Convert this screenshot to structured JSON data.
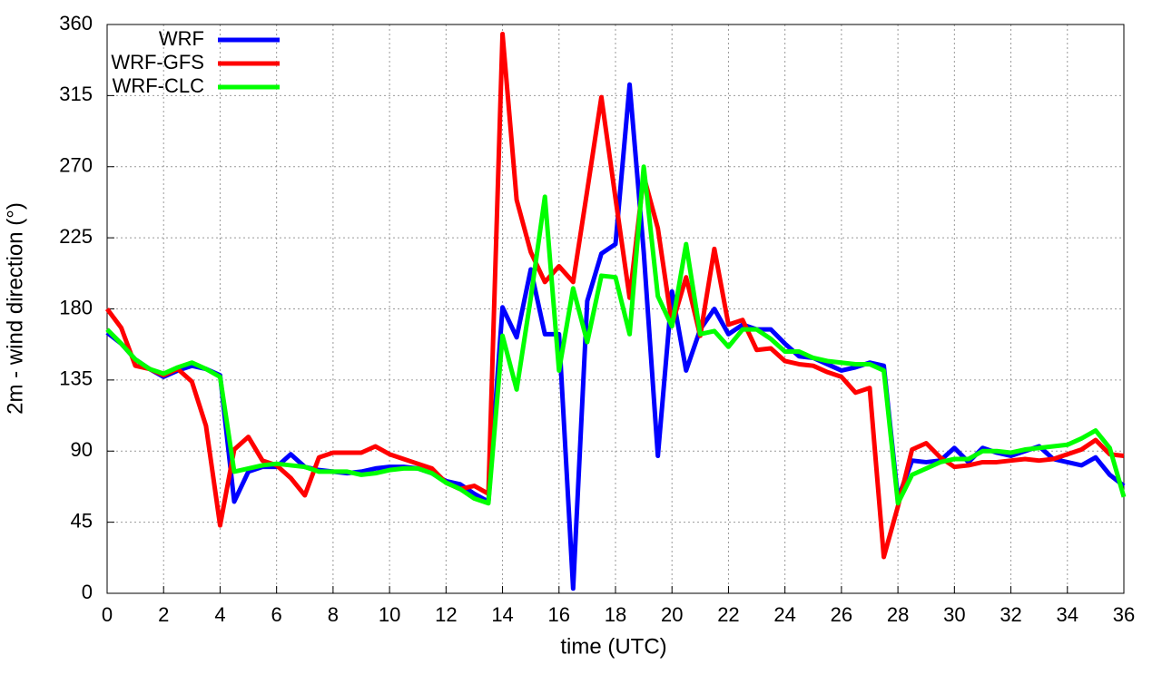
{
  "chart_data": {
    "type": "line",
    "xlabel": "time (UTC)",
    "ylabel": "2m - wind direction (°)",
    "x": [
      0,
      0.5,
      1,
      1.5,
      2,
      2.5,
      3,
      3.5,
      4,
      4.5,
      5,
      5.5,
      6,
      6.5,
      7,
      7.5,
      8,
      8.5,
      9,
      9.5,
      10,
      10.5,
      11,
      11.5,
      12,
      12.5,
      13,
      13.5,
      14,
      14.5,
      15,
      15.5,
      16,
      16.5,
      17,
      17.5,
      18,
      18.5,
      19,
      19.5,
      20,
      20.5,
      21,
      21.5,
      22,
      22.5,
      23,
      23.5,
      24,
      24.5,
      25,
      25.5,
      26,
      26.5,
      27,
      27.5,
      28,
      28.5,
      29,
      29.5,
      30,
      30.5,
      31,
      31.5,
      32,
      32.5,
      33,
      33.5,
      34,
      34.5,
      35,
      35.5,
      36
    ],
    "series": [
      {
        "name": "WRF",
        "color": "#0000ff",
        "values": [
          165,
          158,
          148,
          142,
          137,
          141,
          144,
          142,
          138,
          58,
          77,
          80,
          80,
          88,
          80,
          78,
          77,
          76,
          77,
          79,
          80,
          80,
          79,
          76,
          71,
          69,
          63,
          58,
          181,
          162,
          205,
          164,
          164,
          3,
          185,
          215,
          221,
          322,
          216,
          87,
          191,
          141,
          167,
          180,
          164,
          170,
          167,
          167,
          158,
          150,
          149,
          145,
          141,
          143,
          146,
          144,
          60,
          84,
          83,
          84,
          92,
          83,
          92,
          89,
          87,
          90,
          93,
          85,
          83,
          81,
          86,
          75,
          68
        ]
      },
      {
        "name": "WRF-GFS",
        "color": "#ff0000",
        "values": [
          180,
          168,
          144,
          142,
          138,
          142,
          134,
          106,
          43,
          91,
          99,
          84,
          81,
          73,
          62,
          86,
          89,
          89,
          89,
          93,
          88,
          85,
          82,
          79,
          70,
          66,
          68,
          63,
          354,
          249,
          216,
          197,
          207,
          197,
          255,
          314,
          250,
          187,
          264,
          231,
          170,
          200,
          163,
          218,
          170,
          173,
          154,
          155,
          147,
          145,
          144,
          140,
          137,
          127,
          130,
          23,
          55,
          91,
          95,
          86,
          80,
          81,
          83,
          83,
          84,
          85,
          84,
          85,
          88,
          91,
          97,
          88,
          87
        ]
      },
      {
        "name": "WRF-CLC",
        "color": "#00ff00",
        "values": [
          167,
          158,
          148,
          142,
          139,
          143,
          146,
          142,
          137,
          77,
          79,
          81,
          82,
          81,
          80,
          77,
          77,
          77,
          75,
          76,
          78,
          79,
          79,
          76,
          70,
          66,
          60,
          57,
          163,
          129,
          187,
          251,
          141,
          193,
          159,
          201,
          200,
          164,
          270,
          188,
          169,
          221,
          164,
          166,
          156,
          167,
          167,
          161,
          153,
          153,
          149,
          147,
          146,
          145,
          145,
          141,
          57,
          75,
          79,
          83,
          85,
          85,
          90,
          90,
          89,
          91,
          92,
          93,
          94,
          98,
          103,
          92,
          61
        ]
      }
    ],
    "xlim": [
      0,
      36
    ],
    "xticks": [
      0,
      2,
      4,
      6,
      8,
      10,
      12,
      14,
      16,
      18,
      20,
      22,
      24,
      26,
      28,
      30,
      32,
      34,
      36
    ],
    "ylim": [
      0,
      360
    ],
    "yticks": [
      0,
      45,
      90,
      135,
      180,
      225,
      270,
      315,
      360
    ],
    "grid": true,
    "legend": "top-left"
  }
}
